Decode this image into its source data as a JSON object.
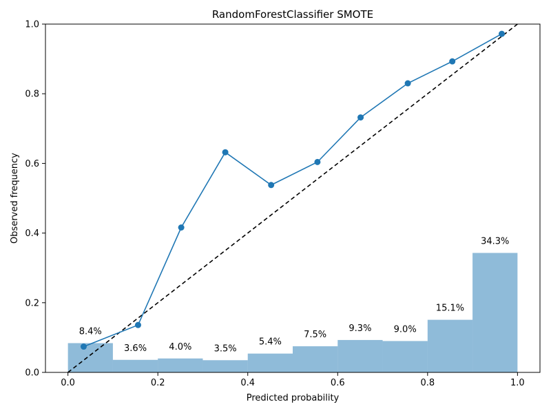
{
  "chart_data": {
    "type": "line",
    "title": "RandomForestClassifier SMOTE",
    "xlabel": "Predicted probability",
    "ylabel": "Observed frequency",
    "xlim": [
      -0.05,
      1.05
    ],
    "ylim": [
      0.0,
      1.0
    ],
    "xticks": [
      "0.0",
      "0.2",
      "0.4",
      "0.6",
      "0.8",
      "1.0"
    ],
    "yticks": [
      "0.0",
      "0.2",
      "0.4",
      "0.6",
      "0.8",
      "1.0"
    ],
    "grid": false,
    "colors": {
      "line": "#1f77b4",
      "bars": "#1f77b4",
      "reference": "#000000"
    },
    "calibration_curve": {
      "x": [
        0.035,
        0.156,
        0.252,
        0.35,
        0.452,
        0.555,
        0.651,
        0.756,
        0.855,
        0.965
      ],
      "y": [
        0.074,
        0.136,
        0.416,
        0.632,
        0.538,
        0.604,
        0.732,
        0.83,
        0.893,
        0.972
      ]
    },
    "reference_line": {
      "x": [
        0.0,
        1.0
      ],
      "y": [
        0.0,
        1.0
      ]
    },
    "histogram": {
      "bin_edges": [
        0.0,
        0.1,
        0.2,
        0.3,
        0.4,
        0.5,
        0.6,
        0.7,
        0.8,
        0.9,
        1.0
      ],
      "values": [
        0.084,
        0.036,
        0.04,
        0.035,
        0.054,
        0.075,
        0.093,
        0.09,
        0.151,
        0.343
      ],
      "labels": [
        "8.4%",
        "3.6%",
        "4.0%",
        "3.5%",
        "5.4%",
        "7.5%",
        "9.3%",
        "9.0%",
        "15.1%",
        "34.3%"
      ]
    }
  }
}
